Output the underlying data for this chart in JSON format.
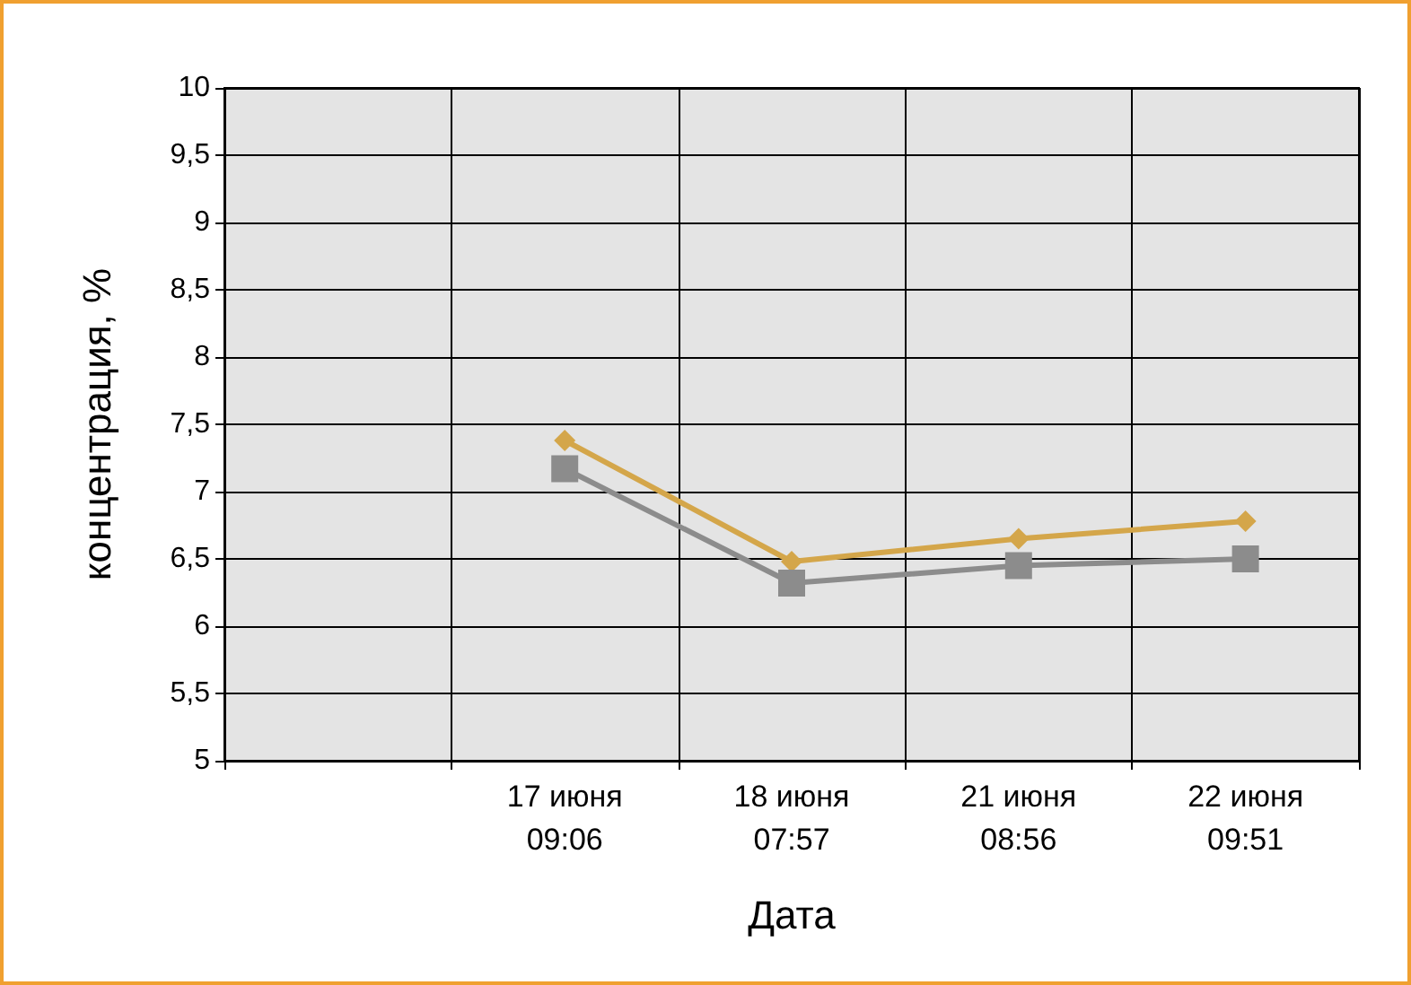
{
  "chart_data": {
    "type": "line",
    "xlabel": "Дата",
    "ylabel": "концентрация, %",
    "categories": [
      null,
      "17 июня\n09:06",
      "18 июня\n07:57",
      "21 июня\n08:56",
      "22 июня\n09:51"
    ],
    "series": [
      {
        "color": "#d4a64a",
        "marker": "diamond",
        "values": [
          null,
          7.38,
          6.48,
          6.65,
          6.78
        ]
      },
      {
        "color": "#8c8c8c",
        "marker": "square",
        "values": [
          null,
          7.17,
          6.32,
          6.45,
          6.5
        ]
      }
    ],
    "ylim": [
      5,
      10
    ],
    "yticks": [
      5,
      {
        "value": 5.5,
        "label": "5,5"
      },
      6,
      {
        "value": 6.5,
        "label": "6,5"
      },
      7,
      {
        "value": 7.5,
        "label": "7,5"
      },
      8,
      {
        "value": 8.5,
        "label": "8,5"
      },
      9,
      {
        "value": 9.5,
        "label": "9,5"
      },
      10
    ],
    "grid": true
  }
}
